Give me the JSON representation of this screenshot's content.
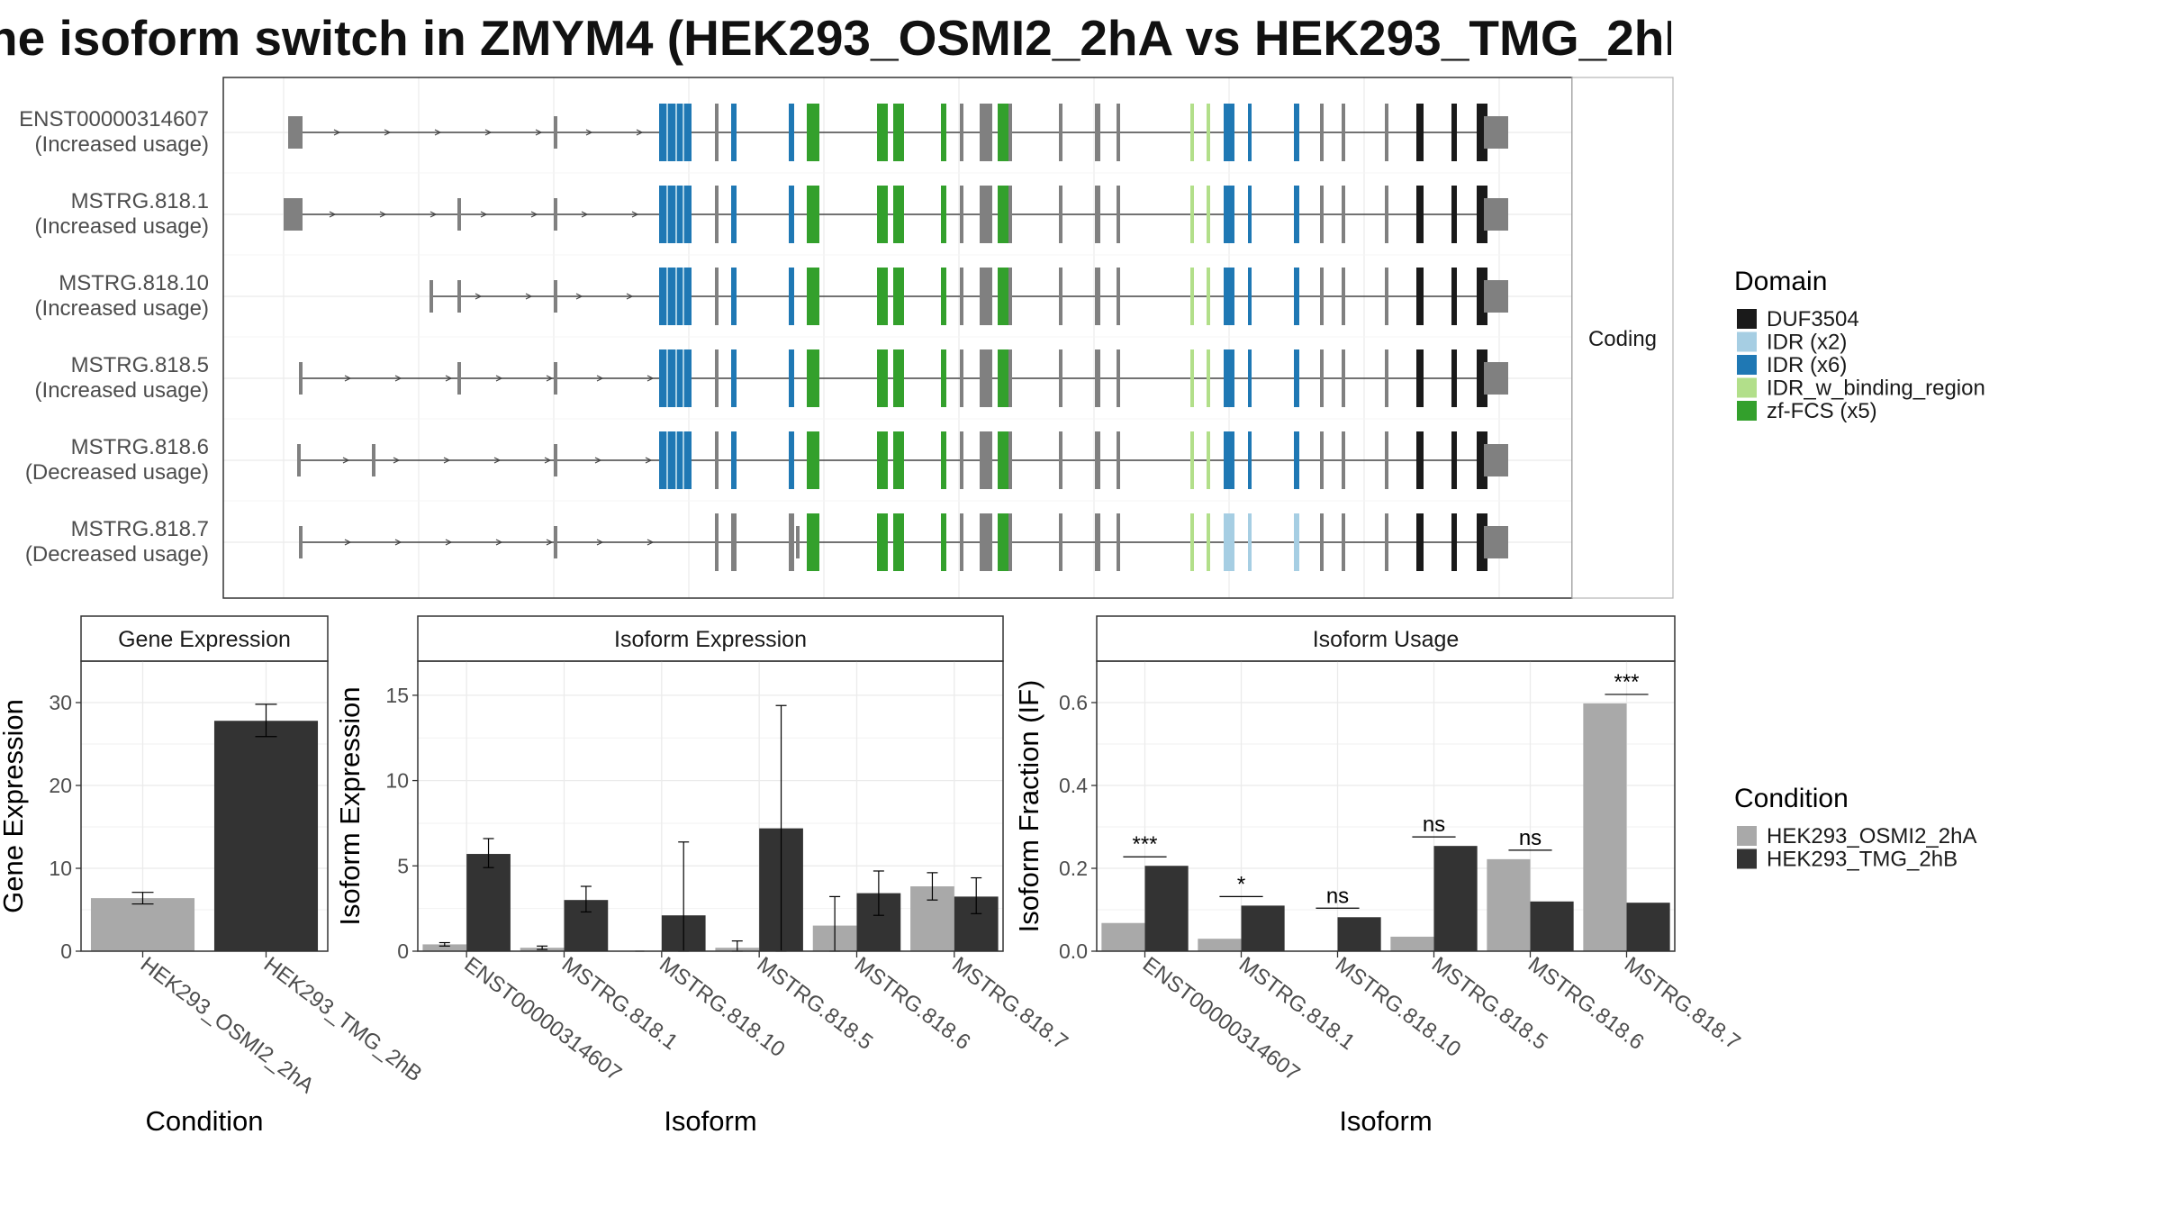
{
  "title": "he isoform switch in ZMYM4 (HEK293_OSMI2_2hA vs HEK293_TMG_2hB",
  "colors": {
    "cond_a": "#a9a9a9",
    "cond_b": "#333333",
    "intron": "#444444",
    "gray_exon": "#808080",
    "DUF3504": "#1a1a1a",
    "IDR (x2)": "#a6cee3",
    "IDR (x6)": "#1f78b4",
    "IDR_w_binding_region": "#b2df8a",
    "zf-FCS (x5)": "#33a02c"
  },
  "structure": {
    "strip_label": "Coding",
    "transcripts": [
      {
        "id": "ENST00000314607",
        "usage": "(Increased usage)"
      },
      {
        "id": "MSTRG.818.1",
        "usage": "(Increased usage)"
      },
      {
        "id": "MSTRG.818.10",
        "usage": "(Increased usage)"
      },
      {
        "id": "MSTRG.818.5",
        "usage": "(Increased usage)"
      },
      {
        "id": "MSTRG.818.6",
        "usage": "(Decreased usage)"
      },
      {
        "id": "MSTRG.818.7",
        "usage": "(Decreased usage)"
      }
    ]
  },
  "domain_legend": {
    "title": "Domain",
    "items": [
      "DUF3504",
      "IDR (x2)",
      "IDR (x6)",
      "IDR_w_binding_region",
      "zf-FCS (x5)"
    ]
  },
  "condition_legend": {
    "title": "Condition",
    "items": [
      "HEK293_OSMI2_2hA",
      "HEK293_TMG_2hB"
    ]
  },
  "chart_data": [
    {
      "type": "bar",
      "title": "Gene Expression",
      "xlabel": "Condition",
      "ylabel": "Gene Expression",
      "ylim": [
        0,
        35
      ],
      "yticks": [
        "0",
        "10",
        "20",
        "30"
      ],
      "categories": [
        "HEK293_OSMI2_2hA",
        "HEK293_TMG_2hB"
      ],
      "values": [
        6.4,
        27.8
      ],
      "errors": [
        [
          5.7,
          7.1
        ],
        [
          25.9,
          29.8
        ]
      ]
    },
    {
      "type": "bar",
      "title": "Isoform Expression",
      "xlabel": "Isoform",
      "ylabel": "Isoform Expression",
      "ylim": [
        0,
        17
      ],
      "yticks": [
        "0",
        "5",
        "10",
        "15"
      ],
      "categories": [
        "ENST00000314607",
        "MSTRG.818.1",
        "MSTRG.818.10",
        "MSTRG.818.5",
        "MSTRG.818.6",
        "MSTRG.818.7"
      ],
      "series": [
        {
          "name": "HEK293_OSMI2_2hA",
          "values": [
            0.4,
            0.2,
            0.0,
            0.2,
            1.5,
            3.8
          ],
          "errors": [
            [
              0.3,
              0.5
            ],
            [
              0.1,
              0.3
            ],
            [
              0.0,
              0.0
            ],
            [
              0.0,
              0.6
            ],
            [
              0.0,
              3.2
            ],
            [
              3.0,
              4.6
            ]
          ]
        },
        {
          "name": "HEK293_TMG_2hB",
          "values": [
            5.7,
            3.0,
            2.1,
            7.2,
            3.4,
            3.2
          ],
          "errors": [
            [
              4.9,
              6.6
            ],
            [
              2.3,
              3.8
            ],
            [
              0.0,
              6.4
            ],
            [
              0.0,
              14.4
            ],
            [
              2.1,
              4.7
            ],
            [
              2.2,
              4.3
            ]
          ]
        }
      ]
    },
    {
      "type": "bar",
      "title": "Isoform Usage",
      "xlabel": "Isoform",
      "ylabel": "Isoform Fraction (IF)",
      "ylim": [
        0,
        0.7
      ],
      "yticks": [
        "0.0",
        "0.2",
        "0.4",
        "0.6"
      ],
      "categories": [
        "ENST00000314607",
        "MSTRG.818.1",
        "MSTRG.818.10",
        "MSTRG.818.5",
        "MSTRG.818.6",
        "MSTRG.818.7"
      ],
      "series": [
        {
          "name": "HEK293_OSMI2_2hA",
          "values": [
            0.068,
            0.03,
            0.0,
            0.035,
            0.222,
            0.598
          ]
        },
        {
          "name": "HEK293_TMG_2hB",
          "values": [
            0.206,
            0.11,
            0.082,
            0.254,
            0.12,
            0.117
          ]
        }
      ],
      "significance": [
        "***",
        "*",
        "ns",
        "ns",
        "ns",
        "***"
      ]
    }
  ]
}
